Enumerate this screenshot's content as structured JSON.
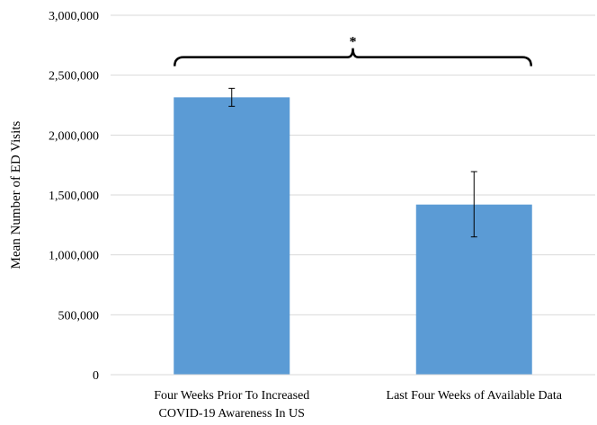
{
  "chart_data": {
    "type": "bar",
    "ylabel": "Mean Number of ED Visits",
    "xlabel": "",
    "ylim": [
      0,
      3000000
    ],
    "yticks": [
      0,
      500000,
      1000000,
      1500000,
      2000000,
      2500000,
      3000000
    ],
    "ytick_labels": [
      "0",
      "500,000",
      "1,000,000",
      "1,500,000",
      "2,000,000",
      "2,500,000",
      "3,000,000"
    ],
    "categories": [
      [
        "Four Weeks Prior To Increased",
        "COVID-19 Awareness In US"
      ],
      [
        "Last Four Weeks of Available Data"
      ]
    ],
    "values": [
      2315000,
      1420000
    ],
    "error_low": [
      2240000,
      1150000
    ],
    "error_high": [
      2390000,
      1695000
    ],
    "bar_color": "#5b9bd5",
    "grid": true,
    "significance": {
      "symbol": "*",
      "between": [
        0,
        1
      ],
      "bracket_value": 2650000
    }
  }
}
